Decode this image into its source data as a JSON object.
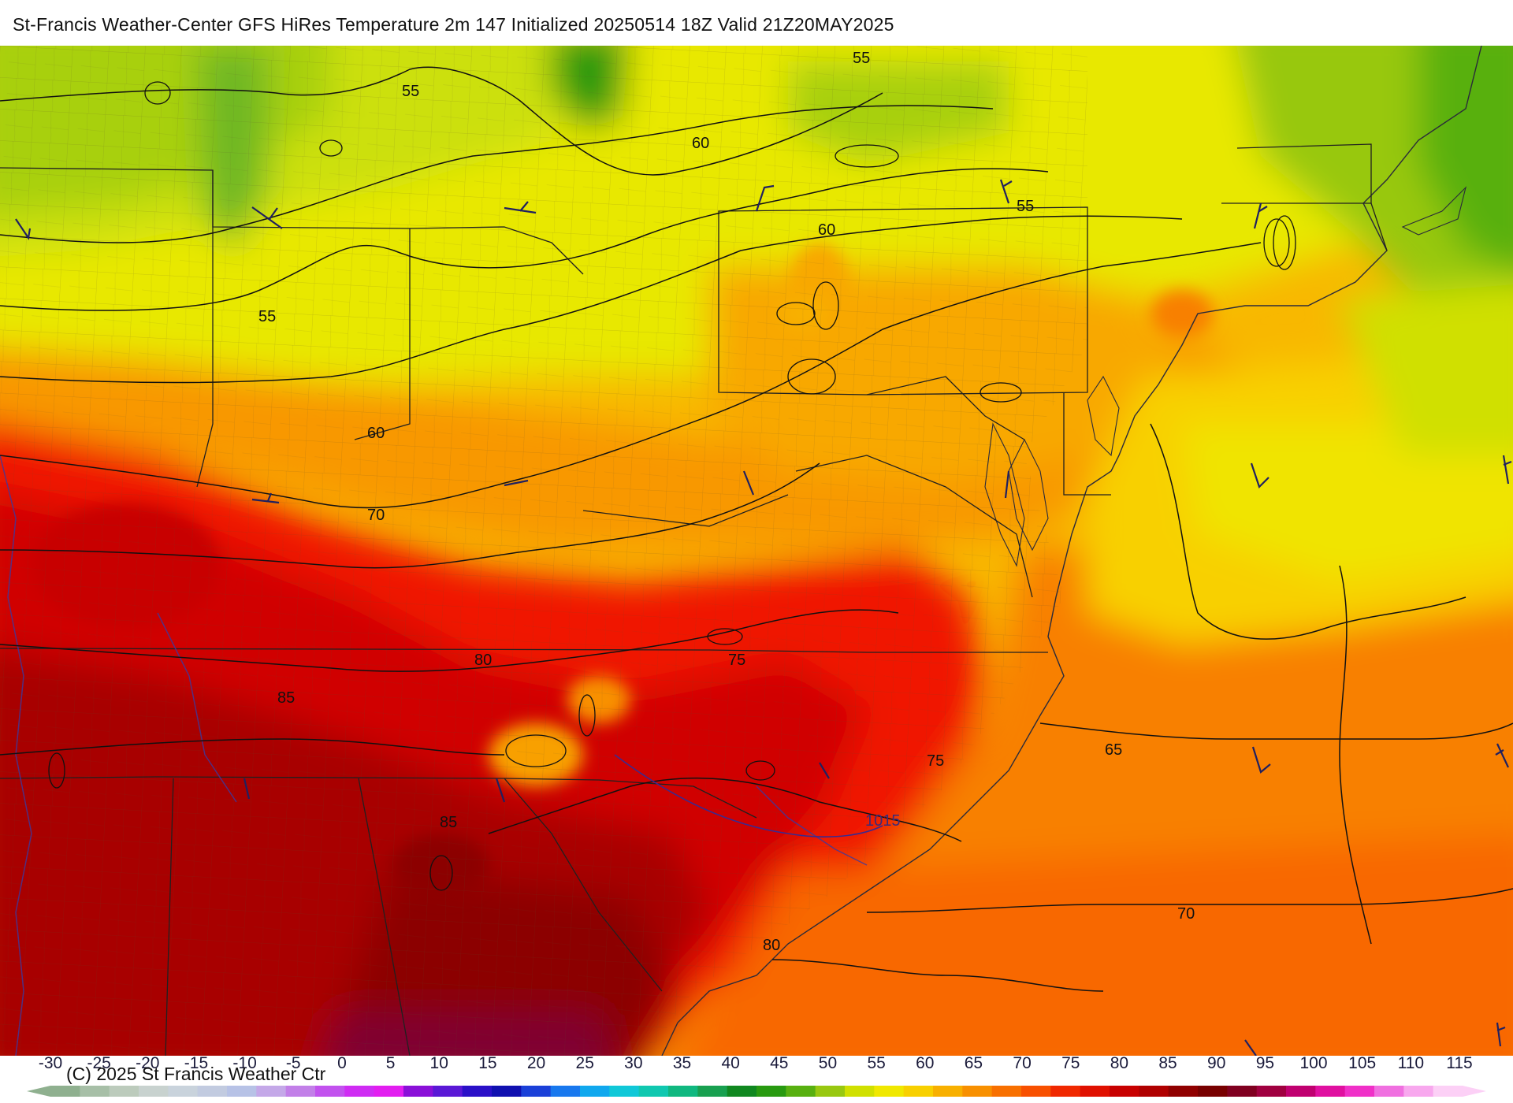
{
  "title": "St-Francis Weather-Center GFS HiRes Temperature 2m  147 Initialized 20250514 18Z Valid 21Z20MAY2025",
  "copyright": "(C) 2025 St Francis Weather Ctr",
  "contour_labels": [
    "55",
    "55",
    "55",
    "55",
    "60",
    "60",
    "60",
    "70",
    "80",
    "75",
    "85",
    "85",
    "75",
    "80",
    "65",
    "70"
  ],
  "isobar_label": "1015",
  "colorbar": {
    "ticks": [
      "-30",
      "-25",
      "-20",
      "-15",
      "-10",
      "-5",
      "0",
      "5",
      "10",
      "15",
      "20",
      "25",
      "30",
      "35",
      "40",
      "45",
      "50",
      "55",
      "60",
      "65",
      "70",
      "75",
      "80",
      "85",
      "90",
      "95",
      "100",
      "105",
      "110",
      "115"
    ],
    "colors": [
      "#8fb08f",
      "#a7bfa7",
      "#bccbbc",
      "#c8d2cf",
      "#c9d3dc",
      "#c2cbe0",
      "#b7c2e6",
      "#c4a8e8",
      "#c27fe8",
      "#c252ee",
      "#cf2cf3",
      "#e21ef0",
      "#8a10d8",
      "#5a18d6",
      "#2a10c8",
      "#1010b0",
      "#1a40d8",
      "#1878ee",
      "#10a8ee",
      "#10c8d8",
      "#10c8b0",
      "#10b880",
      "#18a050",
      "#108820",
      "#289a10",
      "#58b010",
      "#98c810",
      "#d0e000",
      "#f0e800",
      "#f8d000",
      "#f8b000",
      "#f89000",
      "#f87000",
      "#f85000",
      "#f02800",
      "#e01000",
      "#c80000",
      "#b00000",
      "#900000",
      "#780000",
      "#800020",
      "#a00040",
      "#c00070",
      "#e010a0",
      "#f030c8",
      "#f070e0",
      "#f8a8ee",
      "#fcd0f6"
    ]
  }
}
